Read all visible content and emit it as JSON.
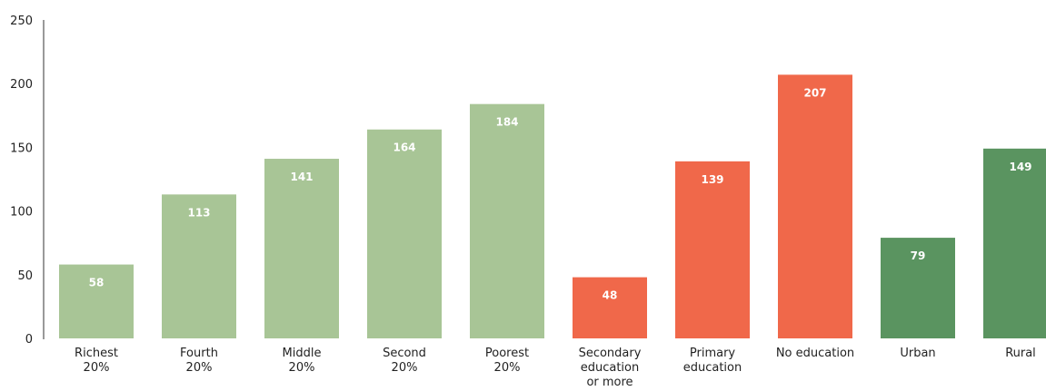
{
  "chart_data": {
    "type": "bar",
    "categories": [
      [
        "Richest",
        "20%"
      ],
      [
        "Fourth",
        "20%"
      ],
      [
        "Middle",
        "20%"
      ],
      [
        "Second",
        "20%"
      ],
      [
        "Poorest",
        "20%"
      ],
      [
        "Secondary",
        "education",
        "or more"
      ],
      [
        "Primary",
        "education"
      ],
      [
        "No education"
      ],
      [
        "Urban"
      ],
      [
        "Rural"
      ]
    ],
    "values": [
      58,
      113,
      141,
      164,
      184,
      48,
      139,
      207,
      79,
      149
    ],
    "colors": [
      "#a8c596",
      "#a8c596",
      "#a8c596",
      "#a8c596",
      "#a8c596",
      "#f0684a",
      "#f0684a",
      "#f0684a",
      "#5a9460",
      "#5a9460"
    ],
    "ylim": [
      0,
      250
    ],
    "yticks": [
      0,
      50,
      100,
      150,
      200,
      250
    ],
    "grid": false
  }
}
